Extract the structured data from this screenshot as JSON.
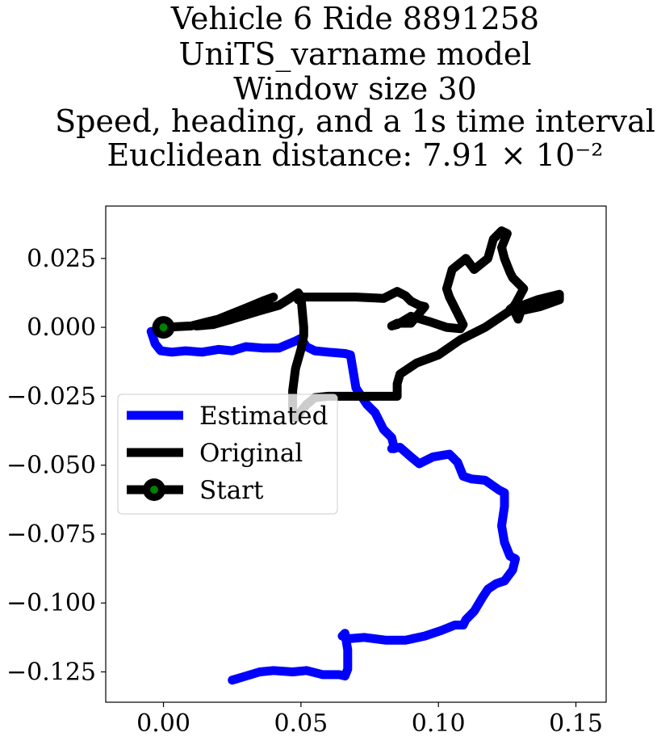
{
  "chart_data": {
    "type": "line",
    "title_lines": [
      "Vehicle 6 Ride 8891258",
      "UniTS_varname model",
      "Window size 30",
      "Speed, heading, and a 1s time interval",
      "Euclidean distance: 7.91 × 10⁻²"
    ],
    "xlim": [
      -0.021,
      0.161
    ],
    "ylim": [
      -0.136,
      0.044
    ],
    "x_ticks": [
      0.0,
      0.05,
      0.1,
      0.15
    ],
    "x_tick_labels": [
      "0.00",
      "0.05",
      "0.10",
      "0.15"
    ],
    "y_ticks": [
      0.025,
      0.0,
      -0.025,
      -0.05,
      -0.075,
      -0.1,
      -0.125
    ],
    "y_tick_labels": [
      "0.025",
      "0.000",
      "−0.025",
      "−0.050",
      "−0.075",
      "−0.100",
      "−0.125"
    ],
    "grid": false,
    "legend_position": "center-left",
    "series": [
      {
        "name": "Estimated",
        "color": "#0000ff",
        "x": [
          -0.0045,
          -0.003,
          -0.001,
          0.003,
          0.008,
          0.014,
          0.02,
          0.025,
          0.03,
          0.036,
          0.042,
          0.048,
          0.05,
          0.052,
          0.055,
          0.06,
          0.066,
          0.068,
          0.069,
          0.07,
          0.072,
          0.074,
          0.077,
          0.08,
          0.083,
          0.084,
          0.083,
          0.086,
          0.09,
          0.093,
          0.094,
          0.098,
          0.104,
          0.107,
          0.109,
          0.112,
          0.117,
          0.122,
          0.124,
          0.124,
          0.123,
          0.124,
          0.126,
          0.128,
          0.127,
          0.124,
          0.121,
          0.118,
          0.116,
          0.113,
          0.11,
          0.109,
          0.106,
          0.101,
          0.095,
          0.088,
          0.081,
          0.073,
          0.067,
          0.065,
          0.066,
          0.067,
          0.067,
          0.066,
          0.064,
          0.058,
          0.052,
          0.047,
          0.04,
          0.035,
          0.03,
          0.025
        ],
        "y": [
          -0.0015,
          -0.006,
          -0.0085,
          -0.009,
          -0.0085,
          -0.009,
          -0.008,
          -0.0085,
          -0.007,
          -0.0075,
          -0.0075,
          -0.005,
          -0.004,
          -0.007,
          -0.0085,
          -0.009,
          -0.0095,
          -0.01,
          -0.016,
          -0.022,
          -0.025,
          -0.028,
          -0.031,
          -0.037,
          -0.04,
          -0.044,
          -0.044,
          -0.0435,
          -0.047,
          -0.0495,
          -0.049,
          -0.047,
          -0.046,
          -0.049,
          -0.054,
          -0.055,
          -0.0555,
          -0.059,
          -0.06,
          -0.065,
          -0.072,
          -0.078,
          -0.083,
          -0.084,
          -0.088,
          -0.092,
          -0.093,
          -0.095,
          -0.098,
          -0.103,
          -0.106,
          -0.108,
          -0.108,
          -0.11,
          -0.112,
          -0.1135,
          -0.1135,
          -0.1125,
          -0.113,
          -0.112,
          -0.111,
          -0.117,
          -0.124,
          -0.1265,
          -0.126,
          -0.126,
          -0.1245,
          -0.125,
          -0.1245,
          -0.125,
          -0.1265,
          -0.128
        ]
      },
      {
        "name": "Original",
        "color": "#000000",
        "x": [
          0.0,
          0.01,
          0.02,
          0.03,
          0.036,
          0.04,
          0.038,
          0.032,
          0.025,
          0.018,
          0.012,
          0.016,
          0.025,
          0.035,
          0.042,
          0.046,
          0.049,
          0.05,
          0.049,
          0.05,
          0.06,
          0.07,
          0.08,
          0.085,
          0.088,
          0.09,
          0.093,
          0.095,
          0.09,
          0.085,
          0.083,
          0.085,
          0.09,
          0.097,
          0.103,
          0.108,
          0.109,
          0.104,
          0.103,
          0.105,
          0.11,
          0.113,
          0.118,
          0.12,
          0.123,
          0.125,
          0.123,
          0.124,
          0.126,
          0.127,
          0.131,
          0.128,
          0.127,
          0.129,
          0.13,
          0.128,
          0.126,
          0.128,
          0.136,
          0.144,
          0.144,
          0.137,
          0.13,
          0.126,
          0.117,
          0.108,
          0.1,
          0.092,
          0.086,
          0.085,
          0.085,
          0.075,
          0.065,
          0.06,
          0.055,
          0.052,
          0.048,
          0.047,
          0.047,
          0.048,
          0.05,
          0.051,
          0.051,
          0.05
        ],
        "y": [
          0.0,
          0.0005,
          0.003,
          0.007,
          0.0095,
          0.011,
          0.01,
          0.0065,
          0.003,
          0.001,
          0.0005,
          0.0015,
          0.003,
          0.006,
          0.008,
          0.0105,
          0.0125,
          0.011,
          0.01,
          0.011,
          0.011,
          0.011,
          0.0105,
          0.013,
          0.0115,
          0.0095,
          0.008,
          0.0075,
          0.0015,
          0.0015,
          0.0005,
          0.001,
          0.004,
          0.002,
          0.0,
          -0.0005,
          0.001,
          0.011,
          0.014,
          0.021,
          0.025,
          0.021,
          0.025,
          0.032,
          0.035,
          0.034,
          0.029,
          0.025,
          0.02,
          0.018,
          0.014,
          0.0085,
          0.007,
          0.003,
          0.006,
          0.008,
          0.0065,
          0.007,
          0.01,
          0.012,
          0.01,
          0.0075,
          0.006,
          0.006,
          0.0,
          -0.0045,
          -0.01,
          -0.013,
          -0.017,
          -0.0205,
          -0.025,
          -0.025,
          -0.025,
          -0.025,
          -0.0255,
          -0.028,
          -0.033,
          -0.031,
          -0.023,
          -0.015,
          -0.008,
          -0.003,
          0.0,
          0.011
        ]
      }
    ],
    "legend": [
      {
        "label": "Estimated",
        "color": "#0000ff",
        "marker": "none"
      },
      {
        "label": "Original",
        "color": "#000000",
        "marker": "none"
      },
      {
        "label": "Start",
        "color": "#000000",
        "marker": "circle",
        "marker_fill": "#008000"
      }
    ],
    "start_point": {
      "label": "Start",
      "x": 0.0,
      "y": 0.0,
      "marker_color": "#000000",
      "marker_fill": "#008000"
    }
  }
}
